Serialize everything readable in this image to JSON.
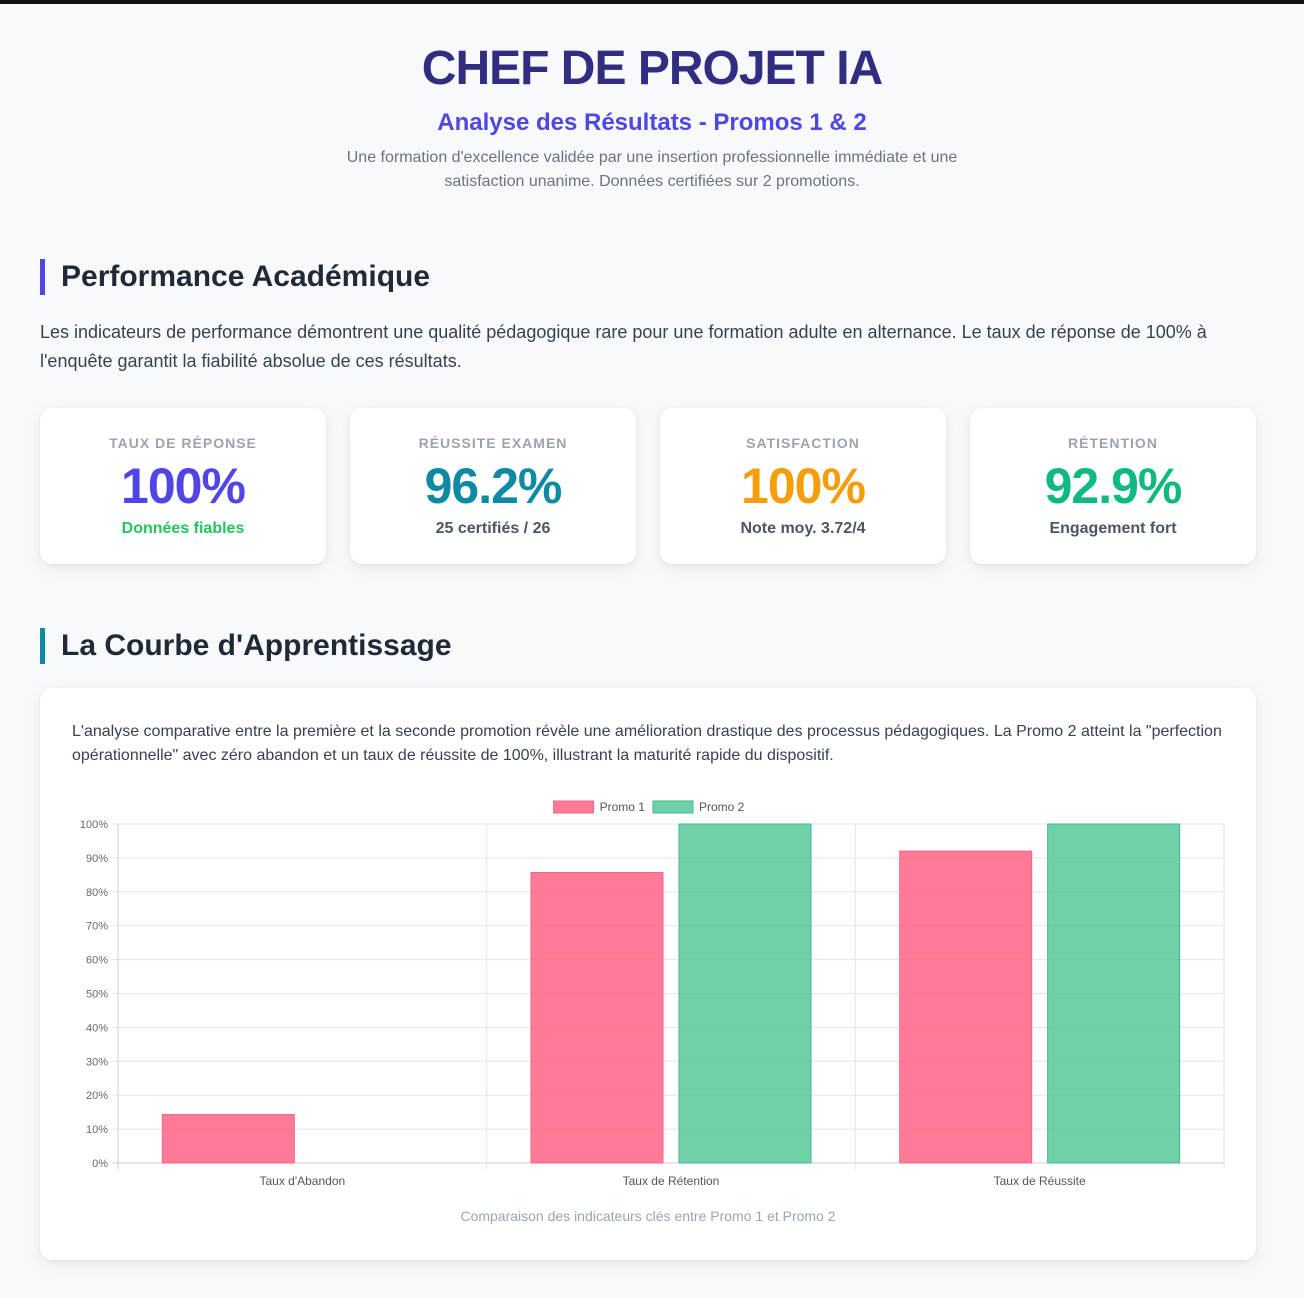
{
  "header": {
    "title": "CHEF DE PROJET IA",
    "subtitle": "Analyse des Résultats - Promos 1 & 2",
    "description": "Une formation d'excellence validée par une insertion professionnelle immédiate et une satisfaction unanime. Données certifiées sur 2 promotions."
  },
  "performance": {
    "title": "Performance Académique",
    "intro": "Les indicateurs de performance démontrent une qualité pédagogique rare pour une formation adulte en alternance. Le taux de réponse de 100% à l'enquête garantit la fiabilité absolue de ces résultats.",
    "kpis": [
      {
        "label": "TAUX DE RÉPONSE",
        "value": "100%",
        "sub": "Données fiables",
        "color": "#4f46e5",
        "sub_color": "#22c55e"
      },
      {
        "label": "RÉUSSITE EXAMEN",
        "value": "96.2%",
        "sub": "25 certifiés / 26",
        "color": "#0e8aa3",
        "sub_color": "#4b5563"
      },
      {
        "label": "SATISFACTION",
        "value": "100%",
        "sub": "Note moy. 3.72/4",
        "color": "#f59e0b",
        "sub_color": "#4b5563"
      },
      {
        "label": "RÉTENTION",
        "value": "92.9%",
        "sub": "Engagement fort",
        "color": "#10b981",
        "sub_color": "#4b5563"
      }
    ]
  },
  "learning": {
    "title": "La Courbe d'Apprentissage",
    "description": "L'analyse comparative entre la première et la seconde promotion révèle une amélioration drastique des processus pédagogiques. La Promo 2 atteint la \"perfection opérationnelle\" avec zéro abandon et un taux de réussite de 100%, illustrant la maturité rapide du dispositif.",
    "caption": "Comparaison des indicateurs clés entre Promo 1 et Promo 2"
  },
  "chart_data": {
    "type": "bar",
    "categories": [
      "Taux d'Abandon",
      "Taux de Rétention",
      "Taux de Réussite"
    ],
    "series": [
      {
        "name": "Promo 1",
        "values": [
          14.3,
          85.7,
          92.0
        ],
        "color": "#ff6384",
        "fill": "rgba(255,99,132,0.85)"
      },
      {
        "name": "Promo 2",
        "values": [
          0,
          100,
          100
        ],
        "color": "#3cba8a",
        "fill": "rgba(76,196,145,0.8)"
      }
    ],
    "ylim": [
      0,
      100
    ],
    "yticks": [
      "0%",
      "10%",
      "20%",
      "30%",
      "40%",
      "50%",
      "60%",
      "70%",
      "80%",
      "90%",
      "100%"
    ],
    "legend": "top",
    "grid": true
  }
}
